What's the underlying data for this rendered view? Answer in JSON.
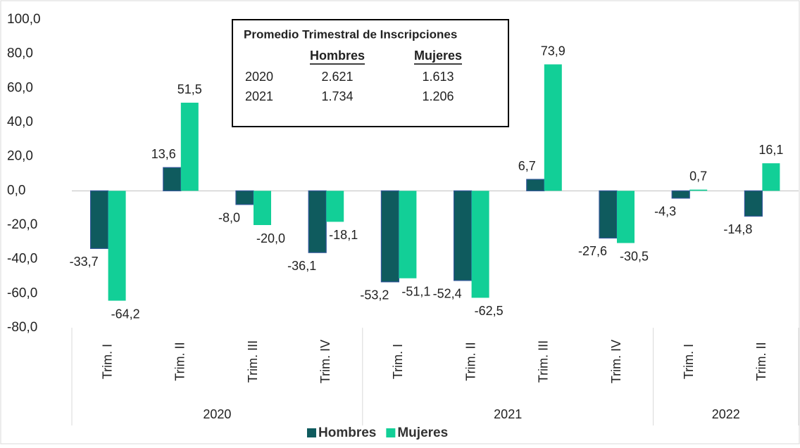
{
  "chart_data": {
    "type": "bar",
    "categories": [
      "Trim. I",
      "Trim. II",
      "Trim. III",
      "Trim. IV",
      "Trim. I",
      "Trim. II",
      "Trim. III",
      "Trim. IV",
      "Trim. I",
      "Trim. II"
    ],
    "groups": [
      {
        "label": "2020",
        "count": 4
      },
      {
        "label": "2021",
        "count": 4
      },
      {
        "label": "2022",
        "count": 2
      }
    ],
    "series": [
      {
        "name": "Hombres",
        "color": "#0f5b5e",
        "values": [
          -33.7,
          13.6,
          -8.0,
          -36.1,
          -53.2,
          -52.4,
          6.7,
          -27.6,
          -4.3,
          -14.8
        ],
        "value_labels": [
          "-33,7",
          "13,6",
          "-8,0",
          "-36,1",
          "-53,2",
          "-52,4",
          "6,7",
          "-27,6",
          "-4,3",
          "-14,8"
        ]
      },
      {
        "name": "Mujeres",
        "color": "#12cf97",
        "values": [
          -64.2,
          51.5,
          -20.0,
          -18.1,
          -51.1,
          -62.5,
          73.9,
          -30.5,
          0.7,
          16.1
        ],
        "value_labels": [
          "-64,2",
          "51,5",
          "-20,0",
          "-18,1",
          "-51,1",
          "-62,5",
          "73,9",
          "-30,5",
          "0,7",
          "16,1"
        ]
      }
    ],
    "ylim": [
      -80,
      100
    ],
    "yticks": [
      {
        "value": -80,
        "label": "-80,0"
      },
      {
        "value": -60,
        "label": "-60,0"
      },
      {
        "value": -40,
        "label": "-40,0"
      },
      {
        "value": -20,
        "label": "-20,0"
      },
      {
        "value": 0,
        "label": "0,0"
      },
      {
        "value": 20,
        "label": "20,0"
      },
      {
        "value": 40,
        "label": "40,0"
      },
      {
        "value": 60,
        "label": "60,0"
      },
      {
        "value": 80,
        "label": "80,0"
      },
      {
        "value": 100,
        "label": "100,0"
      }
    ],
    "legend": "bottom",
    "inset": {
      "title": "Promedio Trimestral de Inscripciones",
      "columns": [
        "Hombres",
        "Mujeres"
      ],
      "rows": [
        [
          "2020",
          "2.621",
          "1.613"
        ],
        [
          "2021",
          "1.734",
          "1.206"
        ]
      ]
    }
  }
}
